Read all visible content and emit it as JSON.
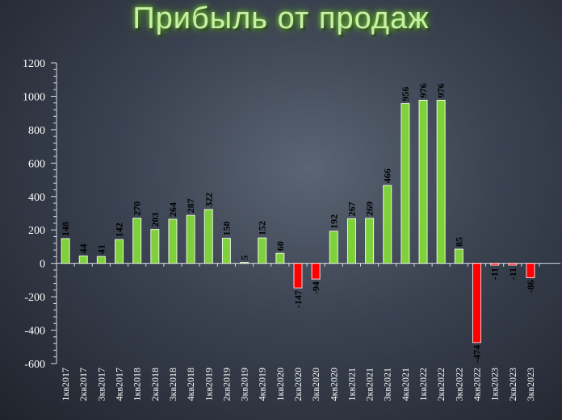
{
  "chart_data": {
    "type": "bar",
    "title": "Прибыль от продаж",
    "xlabel": "",
    "ylabel": "",
    "ylim": [
      -600,
      1200
    ],
    "yticks": [
      -600,
      -400,
      -200,
      0,
      200,
      400,
      600,
      800,
      1000,
      1200
    ],
    "grid": false,
    "categories": [
      "1кв2017",
      "2кв2017",
      "3кв2017",
      "4кв2017",
      "1кв2018",
      "2кв2018",
      "3кв2018",
      "4кв2018",
      "1кв2019",
      "2кв2019",
      "3кв2019",
      "4кв2019",
      "1кв2020",
      "2кв2020",
      "3кв2020",
      "4кв2020",
      "1кв2021",
      "2кв2021",
      "3кв2021",
      "4кв2021",
      "1кв2022",
      "2кв2022",
      "3кв2022",
      "4кв2022",
      "1кв2023",
      "2кв2023",
      "3кв2023"
    ],
    "values": [
      148,
      44,
      41,
      142,
      270,
      203,
      264,
      287,
      322,
      150,
      5,
      152,
      60,
      -147,
      -94,
      192,
      267,
      269,
      466,
      956,
      976,
      976,
      85,
      -474,
      -11,
      -11,
      -86
    ],
    "colors": {
      "positive": "#7fd13b",
      "negative": "#ff0000",
      "positive_edge": "#e8f7d8",
      "negative_edge": "#ffd0d0"
    }
  }
}
